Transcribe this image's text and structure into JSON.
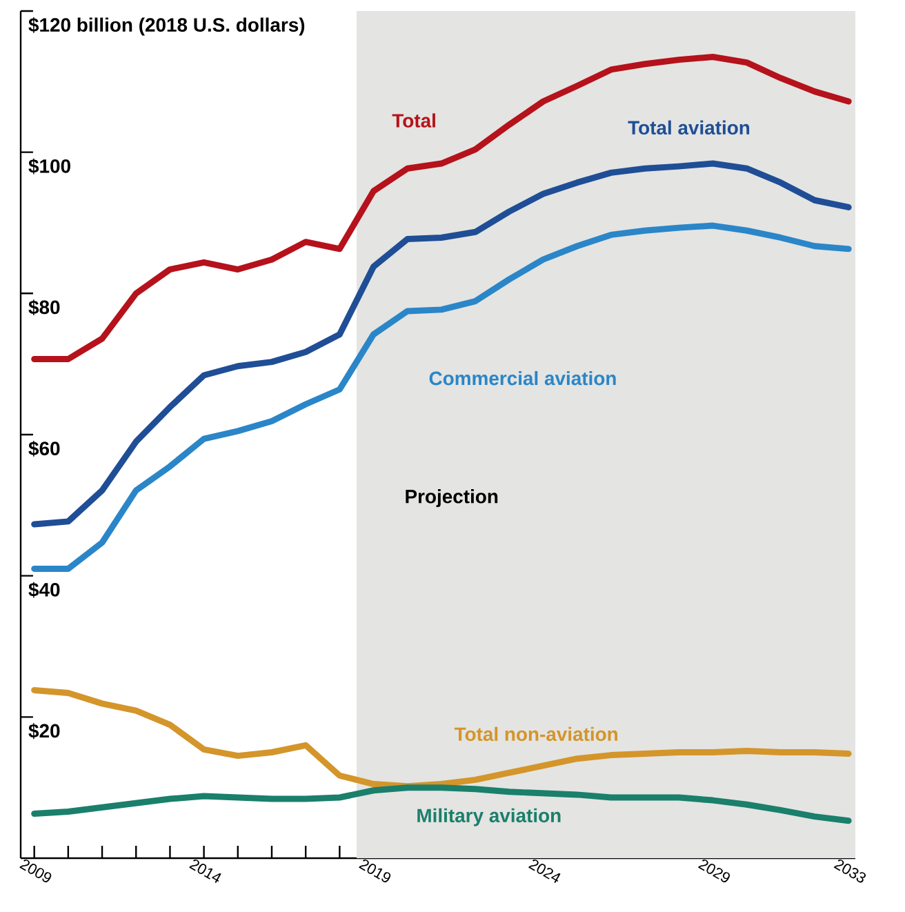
{
  "chart_data": {
    "type": "line",
    "x": [
      2009,
      2010,
      2011,
      2012,
      2013,
      2014,
      2015,
      2016,
      2017,
      2018,
      2019,
      2020,
      2021,
      2022,
      2023,
      2024,
      2025,
      2026,
      2027,
      2028,
      2029,
      2030,
      2031,
      2032,
      2033
    ],
    "series": [
      {
        "name": "Total",
        "color": "#b5121b",
        "values": [
          70.7,
          70.7,
          73.6,
          80,
          83.4,
          84.4,
          83.4,
          84.8,
          87.3,
          86.3,
          94.5,
          97.7,
          98.4,
          100.4,
          103.9,
          107.2,
          109.4,
          111.7,
          112.5,
          113.1,
          113.5,
          112.7,
          110.5,
          108.6,
          107.2
        ]
      },
      {
        "name": "Total aviation",
        "color": "#1f4e96",
        "values": [
          47.3,
          47.7,
          52.1,
          59,
          63.9,
          68.4,
          69.7,
          70.3,
          71.7,
          74.2,
          83.8,
          87.7,
          87.9,
          88.7,
          91.6,
          94.1,
          95.7,
          97.1,
          97.7,
          98,
          98.4,
          97.7,
          95.7,
          93.2,
          92.2
        ]
      },
      {
        "name": "Commercial aviation",
        "color": "#2a86c8",
        "values": [
          41,
          41,
          44.7,
          52.1,
          55.5,
          59.4,
          60.5,
          61.9,
          64.3,
          66.4,
          74.2,
          77.5,
          77.7,
          78.9,
          82,
          84.8,
          86.7,
          88.3,
          88.9,
          89.3,
          89.6,
          88.9,
          87.9,
          86.7,
          86.3
        ]
      },
      {
        "name": "Total non-aviation",
        "color": "#d4952a",
        "values": [
          23.8,
          23.4,
          21.9,
          20.9,
          18.9,
          15.4,
          14.5,
          15,
          16,
          11.7,
          10.5,
          10.2,
          10.5,
          11.1,
          12.1,
          13.1,
          14.1,
          14.6,
          14.8,
          15,
          15,
          15.2,
          15,
          15,
          14.8
        ]
      },
      {
        "name": "Military aviation",
        "color": "#1a7f6b",
        "values": [
          6.3,
          6.6,
          7.2,
          7.8,
          8.4,
          8.8,
          8.6,
          8.4,
          8.4,
          8.6,
          9.6,
          10,
          10,
          9.8,
          9.4,
          9.2,
          9,
          8.6,
          8.6,
          8.6,
          8.2,
          7.6,
          6.8,
          5.9,
          5.3
        ]
      }
    ],
    "xlim": [
      2008.6,
      2033.2
    ],
    "xticks": [
      2009,
      {
        "value": 2010,
        "label": null
      },
      {
        "value": 2011,
        "label": null
      },
      {
        "value": 2012,
        "label": null
      },
      {
        "value": 2013,
        "label": null
      },
      2014,
      {
        "value": 2015,
        "label": null
      },
      {
        "value": 2016,
        "label": null
      },
      {
        "value": 2017,
        "label": null
      },
      {
        "value": 2018,
        "label": null
      },
      2019,
      {
        "value": 2020,
        "label": null
      },
      {
        "value": 2021,
        "label": null
      },
      {
        "value": 2022,
        "label": null
      },
      {
        "value": 2023,
        "label": null
      },
      2024,
      {
        "value": 2025,
        "label": null
      },
      {
        "value": 2026,
        "label": null
      },
      {
        "value": 2027,
        "label": null
      },
      {
        "value": 2028,
        "label": null
      },
      2029,
      {
        "value": 2030,
        "label": null
      },
      {
        "value": 2031,
        "label": null
      },
      {
        "value": 2032,
        "label": null
      },
      2033
    ],
    "ylim": [
      0,
      120
    ],
    "yticks": [
      {
        "value": 20,
        "label": "$20"
      },
      {
        "value": 40,
        "label": "$40"
      },
      {
        "value": 60,
        "label": "$60"
      },
      {
        "value": 80,
        "label": "$80"
      },
      {
        "value": 100,
        "label": "$100"
      },
      {
        "value": 120,
        "label": "$120 billion (2018 U.S. dollars)"
      }
    ],
    "bands": [
      {
        "axis": "x",
        "from": 2018.5,
        "to": 2033.2,
        "label": "Projection",
        "color": "#e4e4e2"
      }
    ]
  }
}
